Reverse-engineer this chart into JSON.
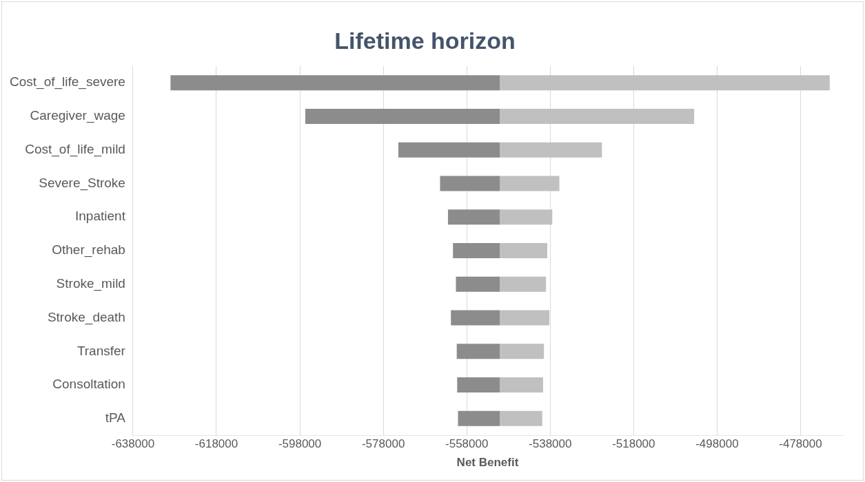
{
  "chart_data": {
    "type": "bar",
    "orientation": "horizontal",
    "title": "Lifetime horizon",
    "xlabel": "Net Benefit",
    "categories": [
      "Cost_of_life_severe",
      "Caregiver_wage",
      "Cost_of_life_mild",
      "Severe_Stroke",
      "Inpatient",
      "Other_rehab",
      "Stroke_mild",
      "Stroke_death",
      "Transfer",
      "Consoltation",
      "tPA"
    ],
    "series": [
      {
        "color": "#8c8c8c",
        "base": [
          -629000,
          -596700,
          -574400,
          -564400,
          -562500,
          -561300,
          -560600,
          -561800,
          -560400,
          -560300,
          -560100
        ],
        "values": [
          78900,
          46600,
          24300,
          14300,
          12400,
          11200,
          10500,
          11700,
          10300,
          10200,
          10000
        ]
      },
      {
        "color": "#c0c0c0",
        "base": [
          -550100,
          -550100,
          -550100,
          -550100,
          -550100,
          -550100,
          -550100,
          -550100,
          -550100,
          -550100,
          -550100
        ],
        "values": [
          79100,
          46600,
          24500,
          14300,
          12600,
          11400,
          11100,
          11900,
          10600,
          10400,
          10200
        ]
      }
    ],
    "xlim": [
      -638000,
      -468000
    ],
    "xticks": [
      -638000,
      -618000,
      -598000,
      -578000,
      -558000,
      -538000,
      -518000,
      -498000,
      -478000
    ],
    "grid": "x",
    "legend": false
  }
}
